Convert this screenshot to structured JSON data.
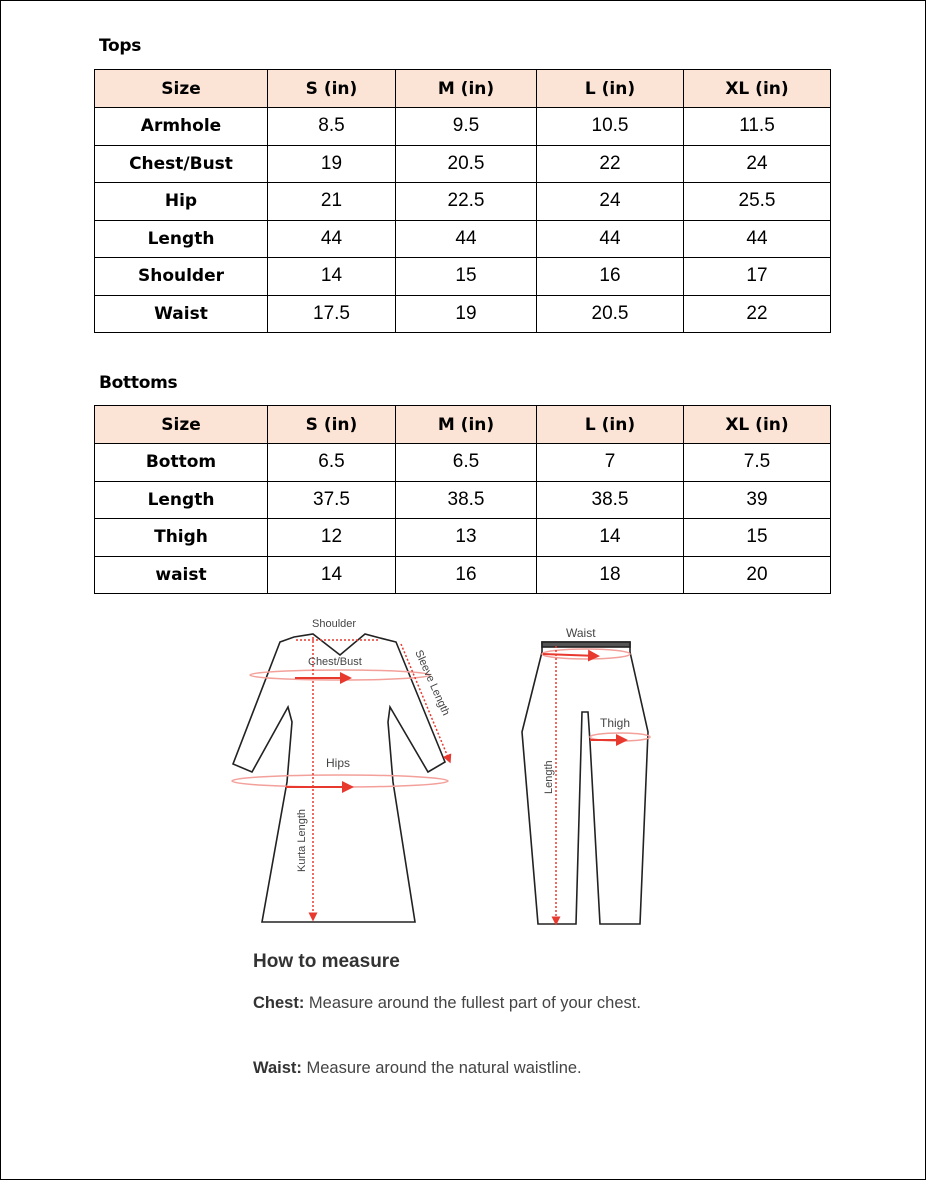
{
  "tops": {
    "title": "Tops",
    "headers": [
      "Size",
      "S (in)",
      "M (in)",
      "L (in)",
      "XL (in)"
    ],
    "rows": [
      [
        "Armhole",
        "8.5",
        "9.5",
        "10.5",
        "11.5"
      ],
      [
        "Chest/Bust",
        "19",
        "20.5",
        "22",
        "24"
      ],
      [
        "Hip",
        "21",
        "22.5",
        "24",
        "25.5"
      ],
      [
        "Length",
        "44",
        "44",
        "44",
        "44"
      ],
      [
        "Shoulder",
        "14",
        "15",
        "16",
        "17"
      ],
      [
        "Waist",
        "17.5",
        "19",
        "20.5",
        "22"
      ]
    ]
  },
  "bottoms": {
    "title": "Bottoms",
    "headers": [
      "Size",
      "S (in)",
      "M (in)",
      "L (in)",
      "XL (in)"
    ],
    "rows": [
      [
        "Bottom",
        "6.5",
        "6.5",
        "7",
        "7.5"
      ],
      [
        "Length",
        "37.5",
        "38.5",
        "38.5",
        "39"
      ],
      [
        "Thigh",
        "12",
        "13",
        "14",
        "15"
      ],
      [
        "waist",
        "14",
        "16",
        "18",
        "20"
      ]
    ]
  },
  "diagram": {
    "kurta_labels": {
      "shoulder": "Shoulder",
      "chest": "Chest/Bust",
      "sleeve": "Sleeve Length",
      "hips": "Hips",
      "length": "Kurta Length"
    },
    "pant_labels": {
      "waist": "Waist",
      "thigh": "Thigh",
      "length": "Length"
    },
    "accent_color": "#e8392f"
  },
  "how_to_measure": {
    "title": "How to measure",
    "chest_label": "Chest:",
    "chest_text": " Measure around the fullest part of your chest.",
    "waist_label": "Waist:",
    "waist_text": " Measure around the natural waistline."
  },
  "header_bg_color": "#fbe4d5"
}
